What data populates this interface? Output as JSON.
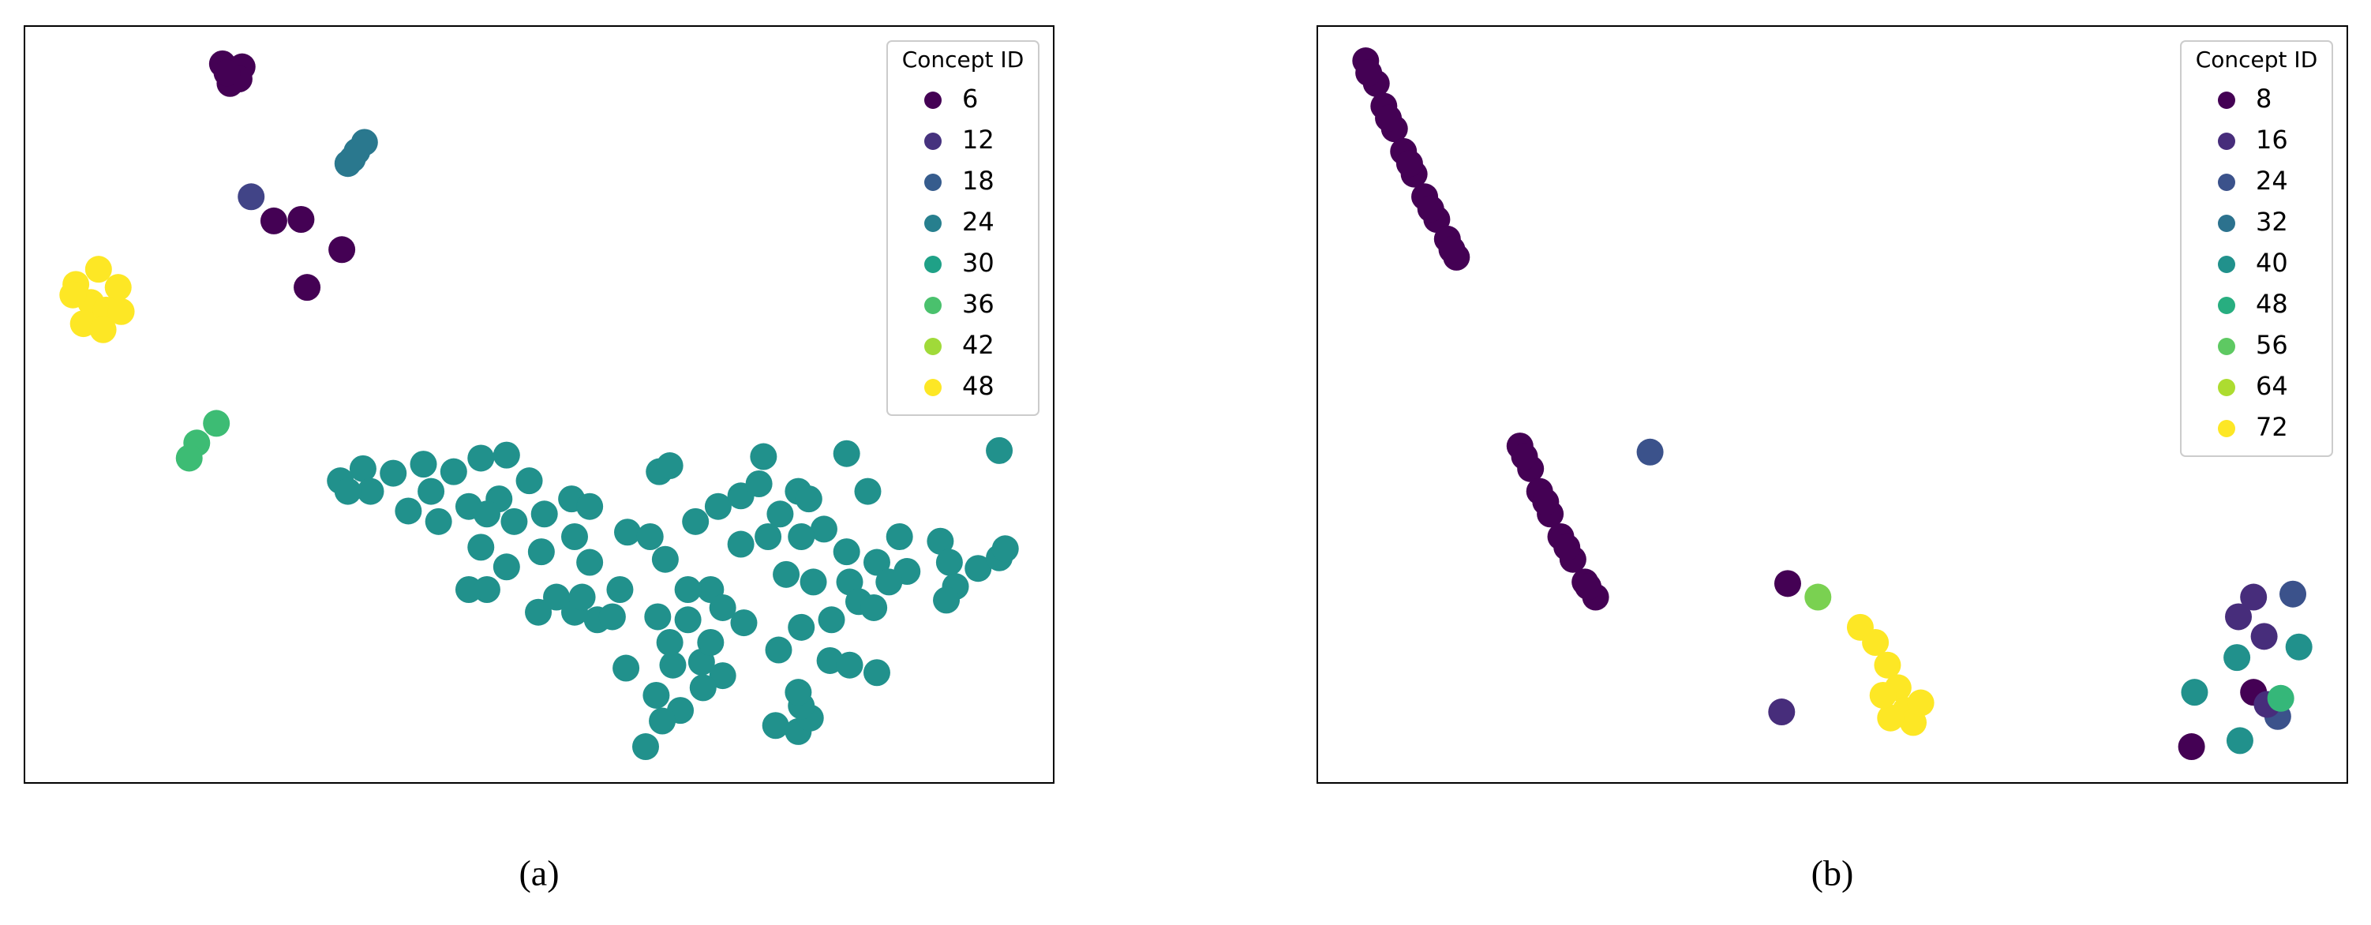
{
  "chart_data": [
    {
      "type": "scatter",
      "label": "(a)",
      "xlim": [
        0,
        681
      ],
      "ylim": [
        0,
        501
      ],
      "legend_loc": "upper right",
      "legend": {
        "title": "Concept ID",
        "labels": [
          6,
          12,
          18,
          24,
          30,
          36,
          42,
          48
        ],
        "colors": [
          "#440154",
          "#46327e",
          "#365c8d",
          "#277f8e",
          "#1fa187",
          "#4ac16d",
          "#a0da39",
          "#fde725"
        ]
      },
      "series": [
        {
          "color": "#440154",
          "x": [
            131,
            144,
            136,
            142,
            134,
            165,
            183,
            210,
            187
          ],
          "y": [
            476,
            474,
            463,
            466,
            470,
            372,
            373,
            353,
            328
          ]
        },
        {
          "color": "#414487",
          "x": [
            150
          ],
          "y": [
            388
          ]
        },
        {
          "color": "#2a788e",
          "x": [
            217,
            225,
            220,
            214
          ],
          "y": [
            413,
            424,
            418,
            410
          ]
        },
        {
          "color": "#fde725",
          "x": [
            34,
            49,
            62,
            44,
            54,
            39,
            52,
            64,
            32
          ],
          "y": [
            330,
            340,
            328,
            318,
            313,
            304,
            300,
            312,
            323
          ]
        },
        {
          "color": "#3dbc74",
          "x": [
            127,
            114,
            109
          ],
          "y": [
            238,
            225,
            215
          ]
        },
        {
          "color": "#21918c",
          "x": [
            209,
            224,
            244,
            264,
            284,
            302,
            319,
            334,
            314,
            294,
            274,
            254,
            229,
            214,
            269,
            324,
            344,
            362,
            374,
            364,
            342,
            319,
            302,
            294,
            306,
            352,
            374,
            379,
            394,
            399,
            414,
            424,
            420,
            427,
            444,
            459,
            474,
            489,
            486,
            500,
            512,
            519,
            544,
            558,
            529,
            514,
            492,
            474,
            454,
            439,
            419,
            439,
            462,
            476,
            504,
            522,
            544,
            546,
            564,
            579,
            584,
            572,
            606,
            612,
            616,
            610,
            631,
            645,
            649,
            645,
            534,
            552,
            562,
            499,
            514,
            533,
            546,
            564,
            427,
            429,
            448,
            454,
            462,
            449,
            398,
            418,
            434,
            422,
            411,
            497,
            512,
            520,
            514,
            512,
            340,
            364,
            369,
            389,
            306
          ],
          "y": [
            200,
            208,
            205,
            211,
            206,
            215,
            217,
            200,
            188,
            183,
            173,
            180,
            193,
            193,
            193,
            173,
            178,
            188,
            183,
            163,
            153,
            143,
            156,
            128,
            128,
            123,
            146,
            108,
            128,
            166,
            163,
            148,
            206,
            210,
            173,
            183,
            190,
            216,
            198,
            178,
            193,
            188,
            218,
            193,
            168,
            163,
            163,
            158,
            128,
            128,
            110,
            108,
            116,
            106,
            138,
            133,
            153,
            133,
            146,
            163,
            140,
            133,
            160,
            146,
            130,
            121,
            142,
            149,
            155,
            220,
            108,
            120,
            116,
            88,
            103,
            81,
            78,
            73,
            93,
            78,
            80,
            93,
            71,
            63,
            76,
            58,
            48,
            41,
            24,
            38,
            34,
            43,
            51,
            60,
            113,
            113,
            123,
            110,
            178
          ]
        }
      ]
    },
    {
      "type": "scatter",
      "label": "(b)",
      "xlim": [
        0,
        681
      ],
      "ylim": [
        0,
        501
      ],
      "legend_loc": "upper right",
      "legend": {
        "title": "Concept ID",
        "labels": [
          8,
          16,
          24,
          32,
          40,
          48,
          56,
          64,
          72
        ],
        "colors": [
          "#440154",
          "#472d7b",
          "#3b528b",
          "#2c728e",
          "#21918c",
          "#28ae80",
          "#5ec962",
          "#addc30",
          "#fde725"
        ]
      },
      "series": [
        {
          "color": "#440154",
          "x": [
            32,
            39,
            44,
            51,
            57,
            64,
            71,
            79,
            86,
            92,
            34,
            47,
            61,
            75,
            89,
            134,
            141,
            147,
            154,
            161,
            169,
            177,
            184,
            137,
            151,
            165,
            179,
            311,
            578,
            619
          ],
          "y": [
            478,
            463,
            448,
            433,
            418,
            403,
            388,
            373,
            360,
            348,
            470,
            440,
            410,
            380,
            353,
            223,
            208,
            193,
            178,
            163,
            148,
            133,
            123,
            216,
            186,
            156,
            130,
            132,
            24,
            60
          ]
        },
        {
          "color": "#fde725",
          "x": [
            359,
            369,
            377,
            384,
            389,
            394,
            379,
            374,
            399
          ],
          "y": [
            103,
            93,
            78,
            63,
            48,
            40,
            43,
            58,
            53
          ]
        },
        {
          "color": "#7ad151",
          "x": [
            331
          ],
          "y": [
            123
          ]
        },
        {
          "color": "#3b528b",
          "x": [
            220,
            645,
            635
          ],
          "y": [
            219,
            125,
            44
          ]
        },
        {
          "color": "#472d7b",
          "x": [
            307,
            619,
            609,
            626,
            628
          ],
          "y": [
            47,
            123,
            110,
            97,
            52
          ]
        },
        {
          "color": "#21918c",
          "x": [
            608,
            649,
            580,
            610
          ],
          "y": [
            83,
            90,
            60,
            28
          ]
        },
        {
          "color": "#35b779",
          "x": [
            637
          ],
          "y": [
            56
          ]
        }
      ]
    }
  ]
}
